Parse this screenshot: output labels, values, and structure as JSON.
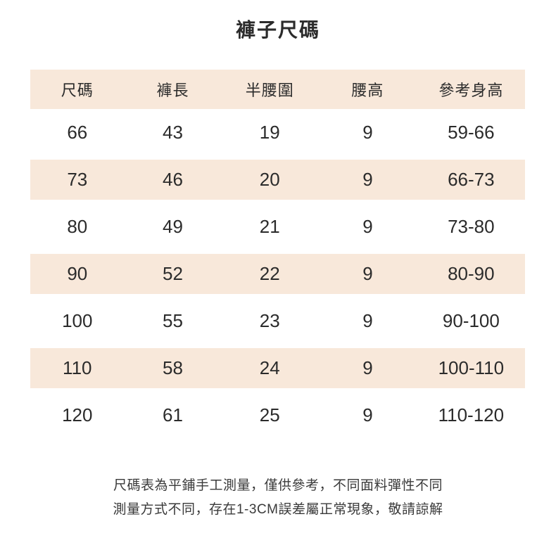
{
  "title": "褲子尺碼",
  "colors": {
    "band": "#f8e8da",
    "text": "#2b2b2b",
    "footer_text": "#3a3a3a",
    "background": "#ffffff"
  },
  "table": {
    "headers": [
      "尺碼",
      "褲長",
      "半腰圍",
      "腰高",
      "參考身高"
    ],
    "rows": [
      [
        "66",
        "43",
        "19",
        "9",
        "59-66"
      ],
      [
        "73",
        "46",
        "20",
        "9",
        "66-73"
      ],
      [
        "80",
        "49",
        "21",
        "9",
        "73-80"
      ],
      [
        "90",
        "52",
        "22",
        "9",
        "80-90"
      ],
      [
        "100",
        "55",
        "23",
        "9",
        "90-100"
      ],
      [
        "110",
        "58",
        "24",
        "9",
        "100-110"
      ],
      [
        "120",
        "61",
        "25",
        "9",
        "110-120"
      ]
    ]
  },
  "footer": {
    "line1": "尺碼表為平鋪手工測量，僅供參考，不同面料彈性不同",
    "line2": "測量方式不同，存在1-3CM誤差屬正常現象，敬請諒解"
  }
}
